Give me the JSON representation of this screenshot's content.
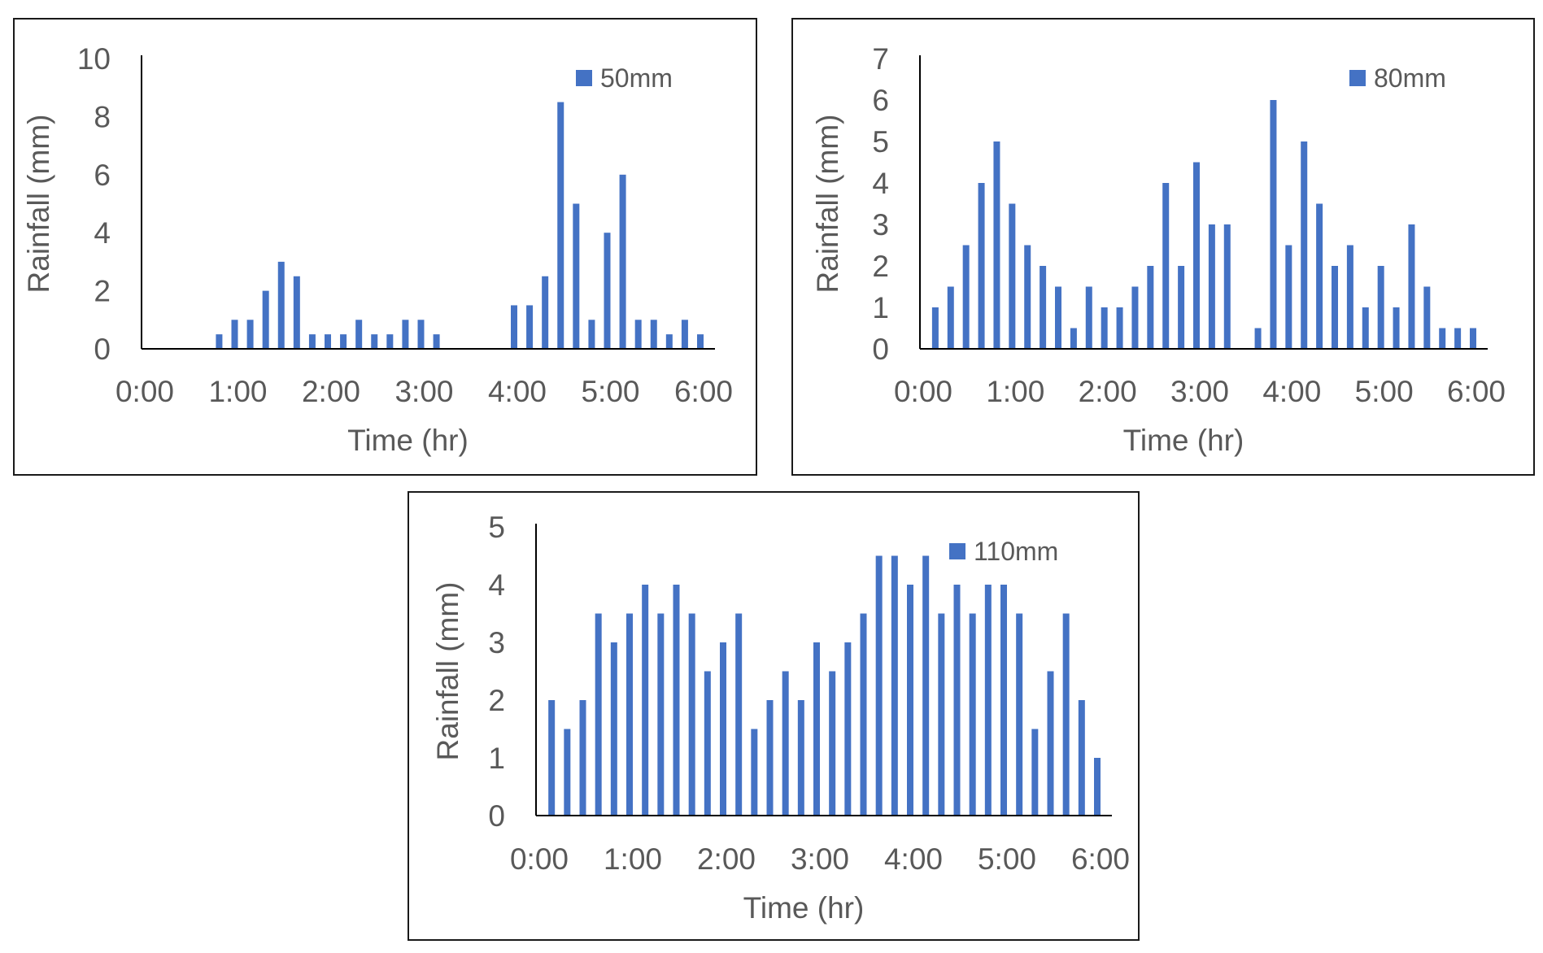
{
  "colors": {
    "bar": "#4472C4",
    "axis": "#000000",
    "text": "#595959",
    "frame": "#1a1a1a"
  },
  "chart_data": [
    {
      "type": "bar",
      "title": "",
      "xlabel": "Time (hr)",
      "ylabel": "Rainfall (mm)",
      "ylim": [
        0,
        10
      ],
      "y_ticks": [
        "0",
        "2",
        "4",
        "6",
        "8",
        "10"
      ],
      "x_ticks": [
        "0:00",
        "1:00",
        "2:00",
        "3:00",
        "4:00",
        "5:00",
        "6:00"
      ],
      "xlim_hours": [
        0,
        6
      ],
      "legend_position": "top-right",
      "grid": false,
      "series": [
        {
          "name": "50mm",
          "x": [
            "0:50",
            "1:00",
            "1:10",
            "1:20",
            "1:30",
            "1:40",
            "1:50",
            "2:00",
            "2:10",
            "2:20",
            "2:30",
            "2:40",
            "2:50",
            "3:00",
            "3:10",
            "4:00",
            "4:10",
            "4:20",
            "4:30",
            "4:40",
            "4:50",
            "5:00",
            "5:10",
            "5:20",
            "5:30",
            "5:40",
            "5:50",
            "6:00"
          ],
          "values": [
            0.5,
            1,
            1,
            2,
            3,
            2.5,
            0.5,
            0.5,
            0.5,
            1,
            0.5,
            0.5,
            1,
            1,
            0.5,
            1.5,
            1.5,
            2.5,
            8.5,
            5,
            1,
            4,
            6,
            1,
            1,
            0.5,
            1,
            0.5
          ]
        }
      ]
    },
    {
      "type": "bar",
      "title": "",
      "xlabel": "Time (hr)",
      "ylabel": "Rainfall (mm)",
      "ylim": [
        0,
        7
      ],
      "y_ticks": [
        "0",
        "1",
        "2",
        "3",
        "4",
        "5",
        "6",
        "7"
      ],
      "x_ticks": [
        "0:00",
        "1:00",
        "2:00",
        "3:00",
        "4:00",
        "5:00",
        "6:00"
      ],
      "xlim_hours": [
        0,
        6
      ],
      "legend_position": "top-right",
      "grid": false,
      "series": [
        {
          "name": "80mm",
          "x": [
            "0:10",
            "0:20",
            "0:30",
            "0:40",
            "0:50",
            "1:00",
            "1:10",
            "1:20",
            "1:30",
            "1:40",
            "1:50",
            "2:00",
            "2:10",
            "2:20",
            "2:30",
            "2:40",
            "2:50",
            "3:00",
            "3:10",
            "3:20",
            "3:40",
            "3:50",
            "4:00",
            "4:10",
            "4:20",
            "4:30",
            "4:40",
            "4:50",
            "5:00",
            "5:10",
            "5:20",
            "5:30",
            "5:40",
            "5:50",
            "6:00"
          ],
          "values": [
            1,
            1.5,
            2.5,
            4,
            5,
            3.5,
            2.5,
            2,
            1.5,
            0.5,
            1.5,
            1,
            1,
            1.5,
            2,
            4,
            2,
            4.5,
            3,
            3,
            0.5,
            6,
            2.5,
            5,
            3.5,
            2,
            2.5,
            1,
            2,
            1,
            3,
            1.5,
            0.5,
            0.5,
            0.5
          ]
        }
      ]
    },
    {
      "type": "bar",
      "title": "",
      "xlabel": "Time (hr)",
      "ylabel": "Rainfall (mm)",
      "ylim": [
        0,
        5
      ],
      "y_ticks": [
        "0",
        "1",
        "2",
        "3",
        "4",
        "5"
      ],
      "x_ticks": [
        "0:00",
        "1:00",
        "2:00",
        "3:00",
        "4:00",
        "5:00",
        "6:00"
      ],
      "xlim_hours": [
        0,
        6
      ],
      "legend_position": "top-right",
      "grid": false,
      "series": [
        {
          "name": "110mm",
          "x": [
            "0:10",
            "0:20",
            "0:30",
            "0:40",
            "0:50",
            "1:00",
            "1:10",
            "1:20",
            "1:30",
            "1:40",
            "1:50",
            "2:00",
            "2:10",
            "2:20",
            "2:30",
            "2:40",
            "2:50",
            "3:00",
            "3:10",
            "3:20",
            "3:30",
            "3:40",
            "3:50",
            "4:00",
            "4:10",
            "4:20",
            "4:30",
            "4:40",
            "4:50",
            "5:00",
            "5:10",
            "5:20",
            "5:30",
            "5:40",
            "5:50",
            "6:00"
          ],
          "values": [
            2,
            1.5,
            2,
            3.5,
            3,
            3.5,
            4,
            3.5,
            4,
            3.5,
            2.5,
            3,
            3.5,
            1.5,
            2,
            2.5,
            2,
            3,
            2.5,
            3,
            3.5,
            4.5,
            4.5,
            4,
            4.5,
            3.5,
            4,
            3.5,
            4,
            4,
            3.5,
            1.5,
            2.5,
            3.5,
            2,
            1
          ]
        }
      ]
    }
  ]
}
